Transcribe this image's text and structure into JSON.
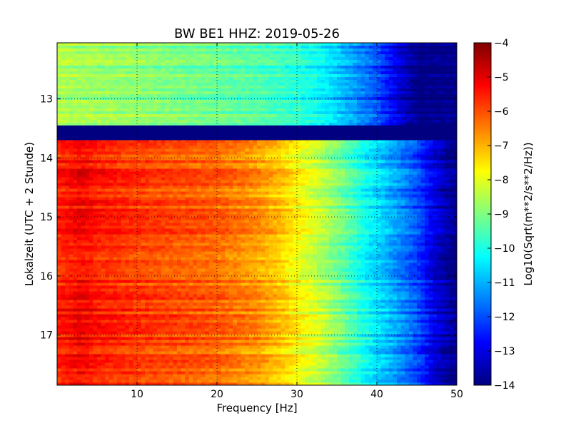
{
  "chart_data": {
    "type": "heatmap",
    "title": "BW BE1 HHZ: 2019-05-26",
    "xlabel": "Frequency [Hz]",
    "ylabel": "Lokalzeit (UTC + 2 Stunde)",
    "colorbar_label": "Log10(Sqrt(m**2/s**2/Hz))",
    "xlim": [
      0,
      50
    ],
    "ylim": [
      12.05,
      17.85
    ],
    "y_inverted": true,
    "x_ticks": [
      10,
      20,
      30,
      40,
      50
    ],
    "y_ticks": [
      13,
      14,
      15,
      16,
      17
    ],
    "colorbar_range": [
      -14,
      -4
    ],
    "colorbar_ticks": [
      -4,
      -5,
      -6,
      -7,
      -8,
      -9,
      -10,
      -11,
      -12,
      -13,
      -14
    ],
    "colormap": "jet",
    "grid": true,
    "regions": [
      {
        "time_start": 12.05,
        "time_end": 13.45,
        "description": "low level band",
        "freq_profile": [
          [
            0,
            -8.6
          ],
          [
            10,
            -8.9
          ],
          [
            20,
            -9.3
          ],
          [
            25,
            -9.5
          ],
          [
            30,
            -9.9
          ],
          [
            33,
            -10.3
          ],
          [
            36,
            -11.0
          ],
          [
            40,
            -12.0
          ],
          [
            43,
            -13.3
          ],
          [
            45,
            -14.0
          ],
          [
            50,
            -14.0
          ]
        ]
      },
      {
        "time_start": 13.45,
        "time_end": 13.7,
        "description": "data gap",
        "value": -14
      },
      {
        "time_start": 13.7,
        "time_end": 17.85,
        "description": "high level band",
        "freq_profile": [
          [
            0,
            -5.6
          ],
          [
            3,
            -5.2
          ],
          [
            5,
            -5.5
          ],
          [
            10,
            -5.8
          ],
          [
            15,
            -6.0
          ],
          [
            20,
            -6.2
          ],
          [
            25,
            -6.7
          ],
          [
            28,
            -7.2
          ],
          [
            30,
            -7.7
          ],
          [
            33,
            -8.4
          ],
          [
            36,
            -9.3
          ],
          [
            39,
            -10.3
          ],
          [
            42,
            -11.1
          ],
          [
            45,
            -12.0
          ],
          [
            47,
            -13.0
          ],
          [
            50,
            -14.0
          ]
        ]
      }
    ]
  }
}
